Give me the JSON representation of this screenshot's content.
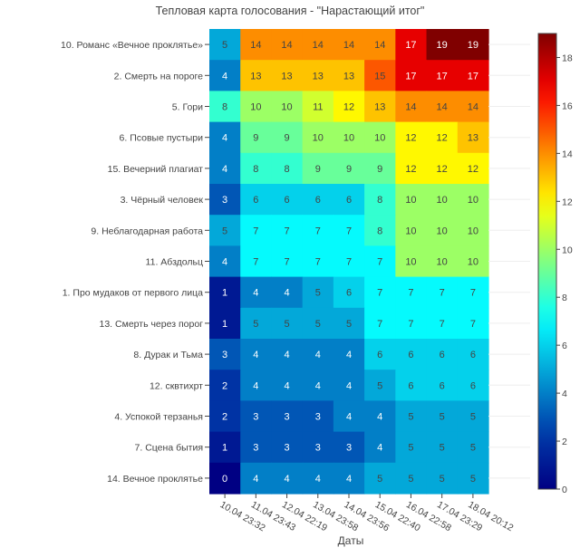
{
  "chart_data": {
    "type": "heatmap",
    "title": "Тепловая карта голосования - \"Нарастающий итог\"",
    "xlabel": "Даты",
    "ylabel": "",
    "x": [
      "10.04 23:32",
      "11.04 23:43",
      "12.04 22:19",
      "13.04 23:58",
      "14.04 23:56",
      "15.04 22:40",
      "16.04 22:58",
      "17.04 23:29",
      "18.04 20:12"
    ],
    "y": [
      "10. Романс «Вечное проклятье»",
      "2. Смерть на пороге",
      "5. Гори",
      "6. Псовые пустыри",
      "15. Вечерний плагиат",
      "3. Чёрный человек",
      "9. Неблагодарная работа",
      "11. Абздольц",
      "1. Про мудаков от первого лица",
      "13. Смерть через порог",
      "8. Дурак и Тьма",
      "12. сквтихрт",
      "4. Успокой терзанья",
      "7. Сцена бытия",
      "14. Вечное проклятье"
    ],
    "z": [
      [
        5,
        14,
        14,
        14,
        14,
        14,
        17,
        19,
        19
      ],
      [
        4,
        13,
        13,
        13,
        13,
        15,
        17,
        17,
        17
      ],
      [
        8,
        10,
        10,
        11,
        12,
        13,
        14,
        14,
        14
      ],
      [
        4,
        9,
        9,
        10,
        10,
        10,
        12,
        12,
        13
      ],
      [
        4,
        8,
        8,
        9,
        9,
        9,
        12,
        12,
        12
      ],
      [
        3,
        6,
        6,
        6,
        6,
        8,
        10,
        10,
        10
      ],
      [
        5,
        7,
        7,
        7,
        7,
        8,
        10,
        10,
        10
      ],
      [
        4,
        7,
        7,
        7,
        7,
        7,
        10,
        10,
        10
      ],
      [
        1,
        4,
        4,
        5,
        6,
        7,
        7,
        7,
        7
      ],
      [
        1,
        5,
        5,
        5,
        5,
        7,
        7,
        7,
        7
      ],
      [
        3,
        4,
        4,
        4,
        4,
        6,
        6,
        6,
        6
      ],
      [
        2,
        4,
        4,
        4,
        4,
        5,
        6,
        6,
        6
      ],
      [
        2,
        3,
        3,
        3,
        4,
        4,
        5,
        5,
        5
      ],
      [
        1,
        3,
        3,
        3,
        3,
        4,
        5,
        5,
        5
      ],
      [
        0,
        4,
        4,
        4,
        4,
        5,
        5,
        5,
        5
      ]
    ],
    "zrange": [
      0,
      19
    ],
    "colorscale": "Jet",
    "colorbar_ticks": [
      0,
      2,
      4,
      6,
      8,
      10,
      12,
      14,
      16,
      18
    ],
    "grid": false,
    "legend": "colorbar-right"
  }
}
